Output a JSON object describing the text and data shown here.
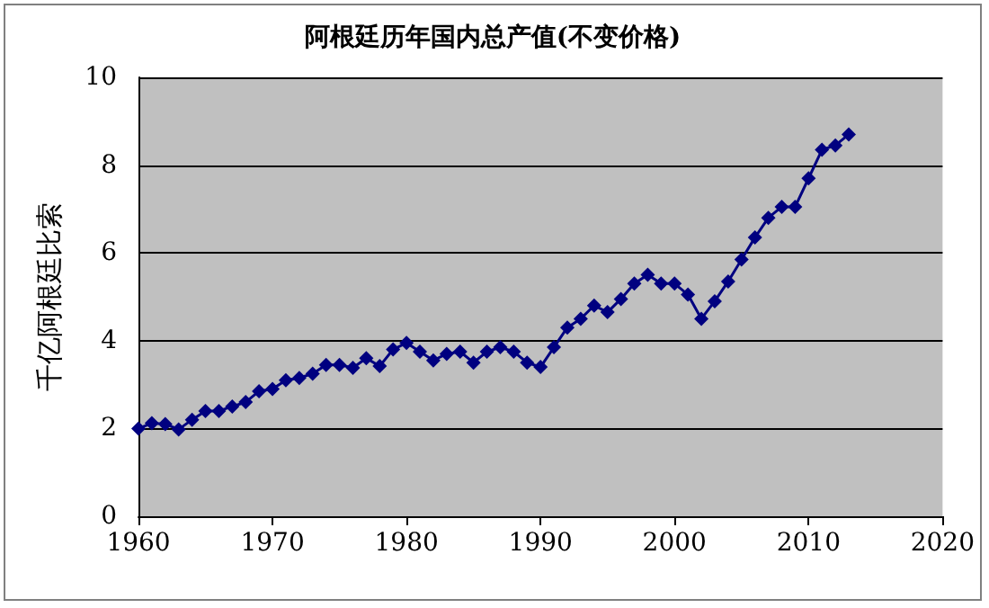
{
  "chart_data": {
    "type": "line",
    "title": "阿根廷历年国内总产值(不变价格)",
    "ylabel": "千亿阿根廷比索",
    "x": [
      1960,
      1961,
      1962,
      1963,
      1964,
      1965,
      1966,
      1967,
      1968,
      1969,
      1970,
      1971,
      1972,
      1973,
      1974,
      1975,
      1976,
      1977,
      1978,
      1979,
      1980,
      1981,
      1982,
      1983,
      1984,
      1985,
      1986,
      1987,
      1988,
      1989,
      1990,
      1991,
      1992,
      1993,
      1994,
      1995,
      1996,
      1997,
      1998,
      1999,
      2000,
      2001,
      2002,
      2003,
      2004,
      2005,
      2006,
      2007,
      2008,
      2009,
      2010,
      2011,
      2012,
      2013
    ],
    "series": [
      {
        "color": "#000080",
        "values": [
          2.0,
          2.12,
          2.1,
          1.98,
          2.2,
          2.4,
          2.4,
          2.5,
          2.6,
          2.85,
          2.9,
          3.1,
          3.15,
          3.25,
          3.45,
          3.45,
          3.38,
          3.6,
          3.42,
          3.8,
          3.95,
          3.75,
          3.55,
          3.7,
          3.75,
          3.5,
          3.75,
          3.85,
          3.75,
          3.5,
          3.4,
          3.85,
          4.3,
          4.5,
          4.8,
          4.65,
          4.95,
          5.3,
          5.5,
          5.3,
          5.3,
          5.05,
          4.5,
          4.9,
          5.35,
          5.85,
          6.35,
          6.8,
          7.05,
          7.05,
          7.7,
          8.35,
          8.45,
          8.7
        ]
      }
    ],
    "xlim": [
      1960,
      2020
    ],
    "xticks": [
      1960,
      1970,
      1980,
      1990,
      2000,
      2010,
      2020
    ],
    "ylim": [
      0,
      10
    ],
    "yticks": [
      0,
      2,
      4,
      6,
      8,
      10
    ],
    "grid": "y",
    "marker": "diamond"
  }
}
